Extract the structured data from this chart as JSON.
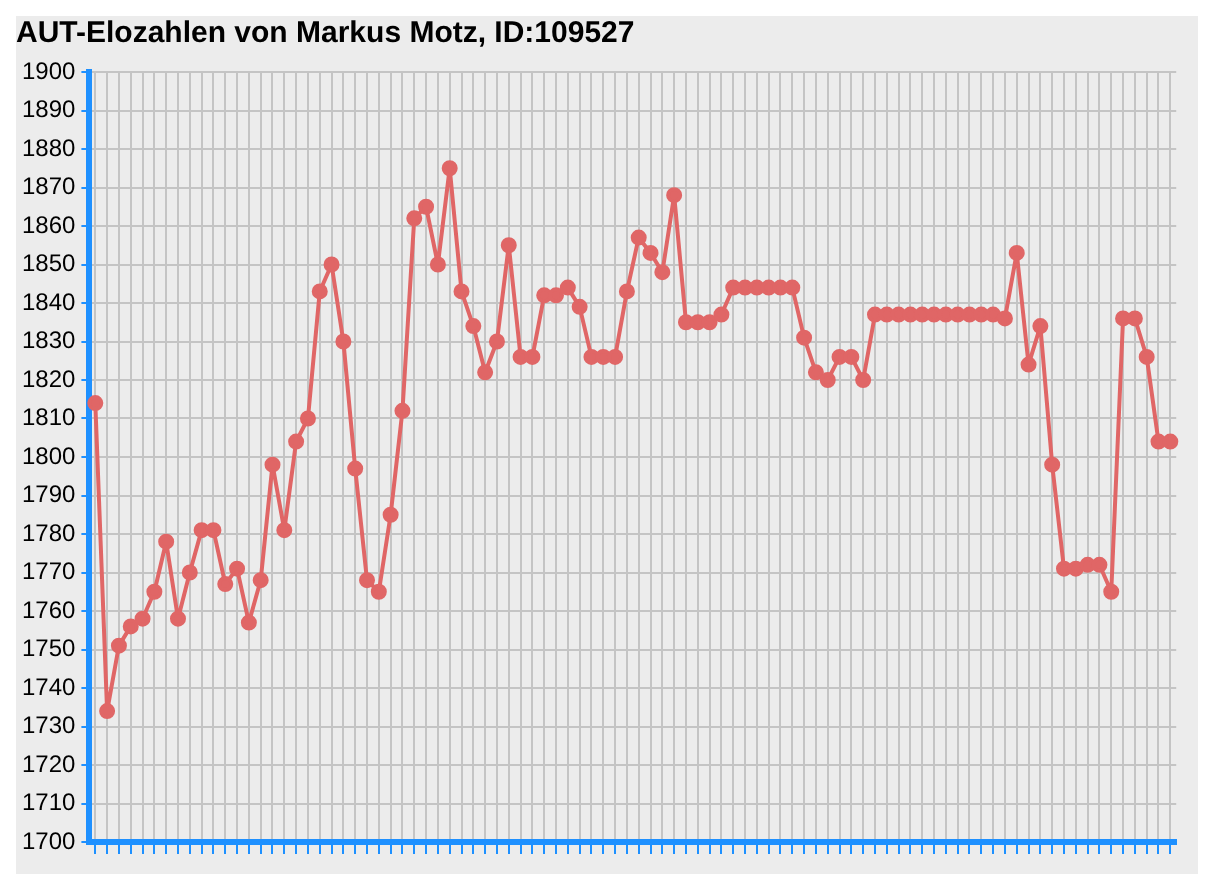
{
  "chart_data": {
    "type": "line",
    "title": "AUT-Elozahlen von Markus Motz, ID:109527",
    "categories": [
      null,
      null,
      null,
      null,
      null,
      null,
      null,
      null,
      null,
      null,
      null,
      null,
      null,
      null,
      null,
      null,
      null,
      null,
      null,
      null,
      null,
      null,
      null,
      null,
      null,
      null,
      null,
      null,
      null,
      null,
      null,
      null,
      null,
      null,
      null,
      null,
      null,
      null,
      null,
      null,
      null,
      null,
      null,
      null,
      null,
      null,
      null,
      null,
      null,
      null,
      null,
      null,
      null,
      null,
      null,
      null,
      null,
      null,
      null,
      null,
      null,
      null,
      null,
      null,
      null,
      null,
      null,
      null,
      null,
      null,
      null,
      null,
      null,
      null,
      null,
      null,
      null,
      null,
      null,
      null,
      null,
      null,
      null,
      null,
      null,
      null,
      null,
      null,
      null,
      null,
      null,
      null
    ],
    "series": [
      {
        "color": "#e06666",
        "values": [
          1814,
          1734,
          1751,
          1756,
          1758,
          1765,
          1778,
          1758,
          1770,
          1781,
          1781,
          1767,
          1771,
          1757,
          1768,
          1798,
          1781,
          1804,
          1810,
          1843,
          1850,
          1830,
          1797,
          1768,
          1765,
          1785,
          1812,
          1862,
          1865,
          1850,
          1875,
          1843,
          1834,
          1822,
          1830,
          1855,
          1826,
          1826,
          1842,
          1842,
          1844,
          1839,
          1826,
          1826,
          1826,
          1843,
          1857,
          1853,
          1848,
          1868,
          1835,
          1835,
          1835,
          1837,
          1844,
          1844,
          1844,
          1844,
          1844,
          1844,
          1831,
          1822,
          1820,
          1826,
          1826,
          1820,
          1837,
          1837,
          1837,
          1837,
          1837,
          1837,
          1837,
          1837,
          1837,
          1837,
          1837,
          1836,
          1853,
          1824,
          1834,
          1798,
          1771,
          1771,
          1772,
          1772,
          1765,
          1836,
          1836,
          1826,
          1804,
          1804
        ]
      }
    ],
    "ylim": [
      1700,
      1900
    ],
    "yticks": [
      1700,
      1710,
      1720,
      1730,
      1740,
      1750,
      1760,
      1770,
      1780,
      1790,
      1800,
      1810,
      1820,
      1830,
      1840,
      1850,
      1860,
      1870,
      1880,
      1890,
      1900
    ],
    "grid": true,
    "marker": "circle",
    "line_style": "solid",
    "legend": false
  }
}
